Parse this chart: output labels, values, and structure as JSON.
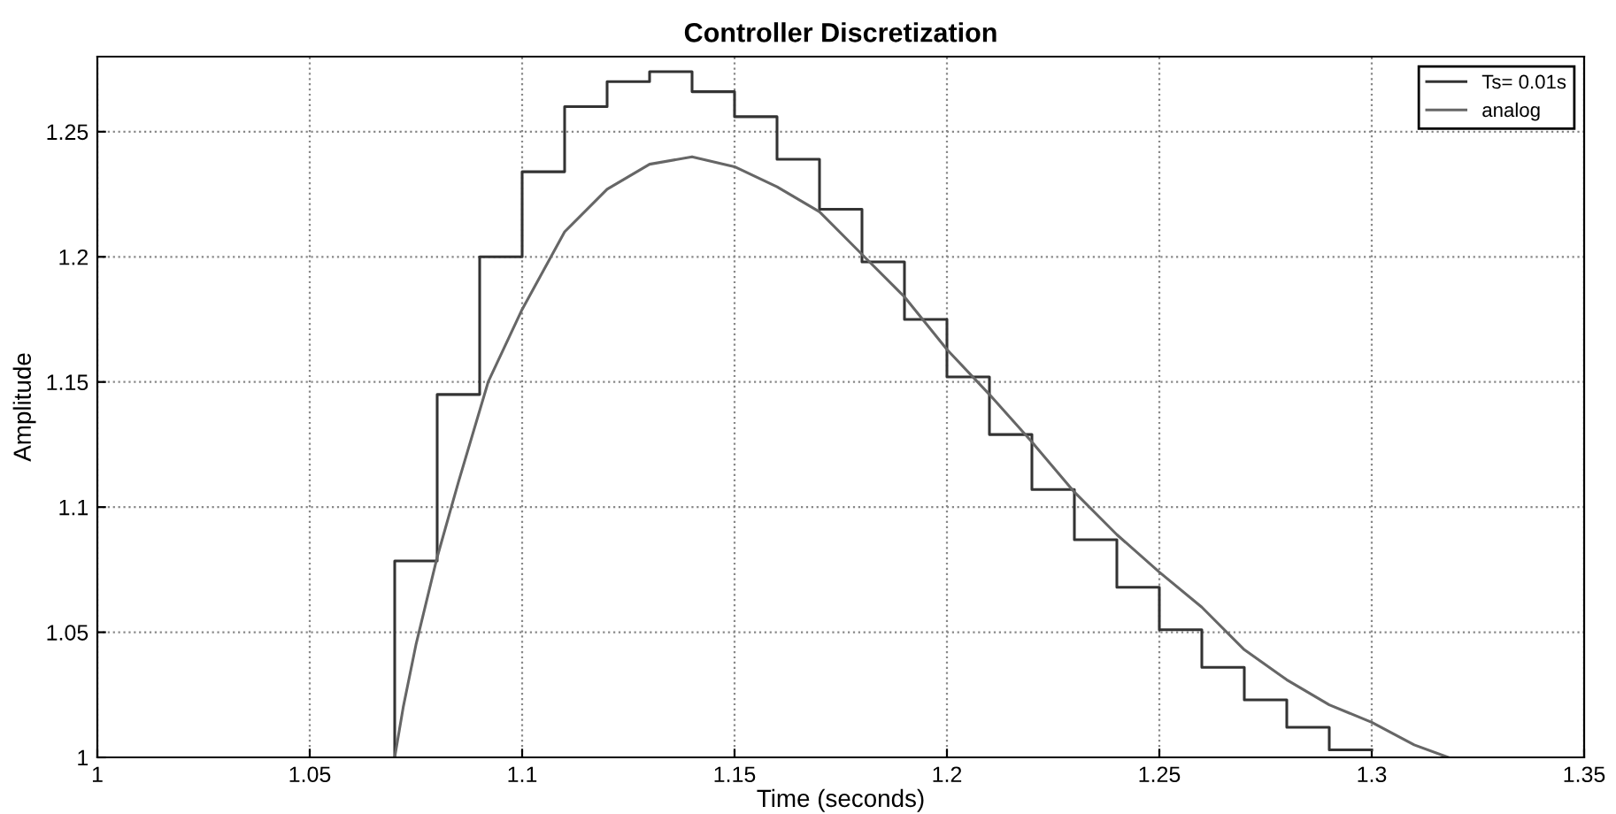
{
  "chart_data": {
    "type": "line",
    "title": "Controller Discretization",
    "xlabel": "Time (seconds)",
    "ylabel": "Amplitude",
    "xlim": [
      1,
      1.35
    ],
    "ylim": [
      1,
      1.28
    ],
    "xticks": [
      1,
      1.05,
      1.1,
      1.15,
      1.2,
      1.25,
      1.3,
      1.35
    ],
    "yticks": [
      1,
      1.05,
      1.1,
      1.15,
      1.2,
      1.25
    ],
    "grid": true,
    "legend": "top right",
    "marker": "none",
    "series": [
      {
        "name": "Ts= 0.01s",
        "type": "step",
        "color": "#333333",
        "x": [
          1.07,
          1.07,
          1.08,
          1.09,
          1.1,
          1.11,
          1.12,
          1.13,
          1.14,
          1.15,
          1.16,
          1.17,
          1.18,
          1.19,
          1.2,
          1.21,
          1.22,
          1.23,
          1.24,
          1.25,
          1.26,
          1.27,
          1.28,
          1.29,
          1.3
        ],
        "values": [
          1.0,
          1.0785,
          1.145,
          1.2,
          1.234,
          1.26,
          1.27,
          1.274,
          1.266,
          1.256,
          1.239,
          1.219,
          1.198,
          1.175,
          1.152,
          1.129,
          1.107,
          1.087,
          1.068,
          1.051,
          1.036,
          1.023,
          1.012,
          1.003,
          1.003
        ]
      },
      {
        "name": "analog",
        "color": "#666666",
        "x": [
          1.07,
          1.072,
          1.075,
          1.08,
          1.085,
          1.092,
          1.1,
          1.11,
          1.12,
          1.13,
          1.14,
          1.15,
          1.16,
          1.17,
          1.18,
          1.19,
          1.2,
          1.21,
          1.22,
          1.23,
          1.24,
          1.25,
          1.26,
          1.27,
          1.28,
          1.29,
          1.3,
          1.31,
          1.318
        ],
        "values": [
          1.0,
          1.02,
          1.045,
          1.08,
          1.11,
          1.15,
          1.179,
          1.21,
          1.227,
          1.237,
          1.24,
          1.236,
          1.228,
          1.218,
          1.201,
          1.184,
          1.163,
          1.145,
          1.126,
          1.106,
          1.089,
          1.074,
          1.06,
          1.043,
          1.031,
          1.021,
          1.014,
          1.005,
          1.0
        ]
      }
    ]
  }
}
